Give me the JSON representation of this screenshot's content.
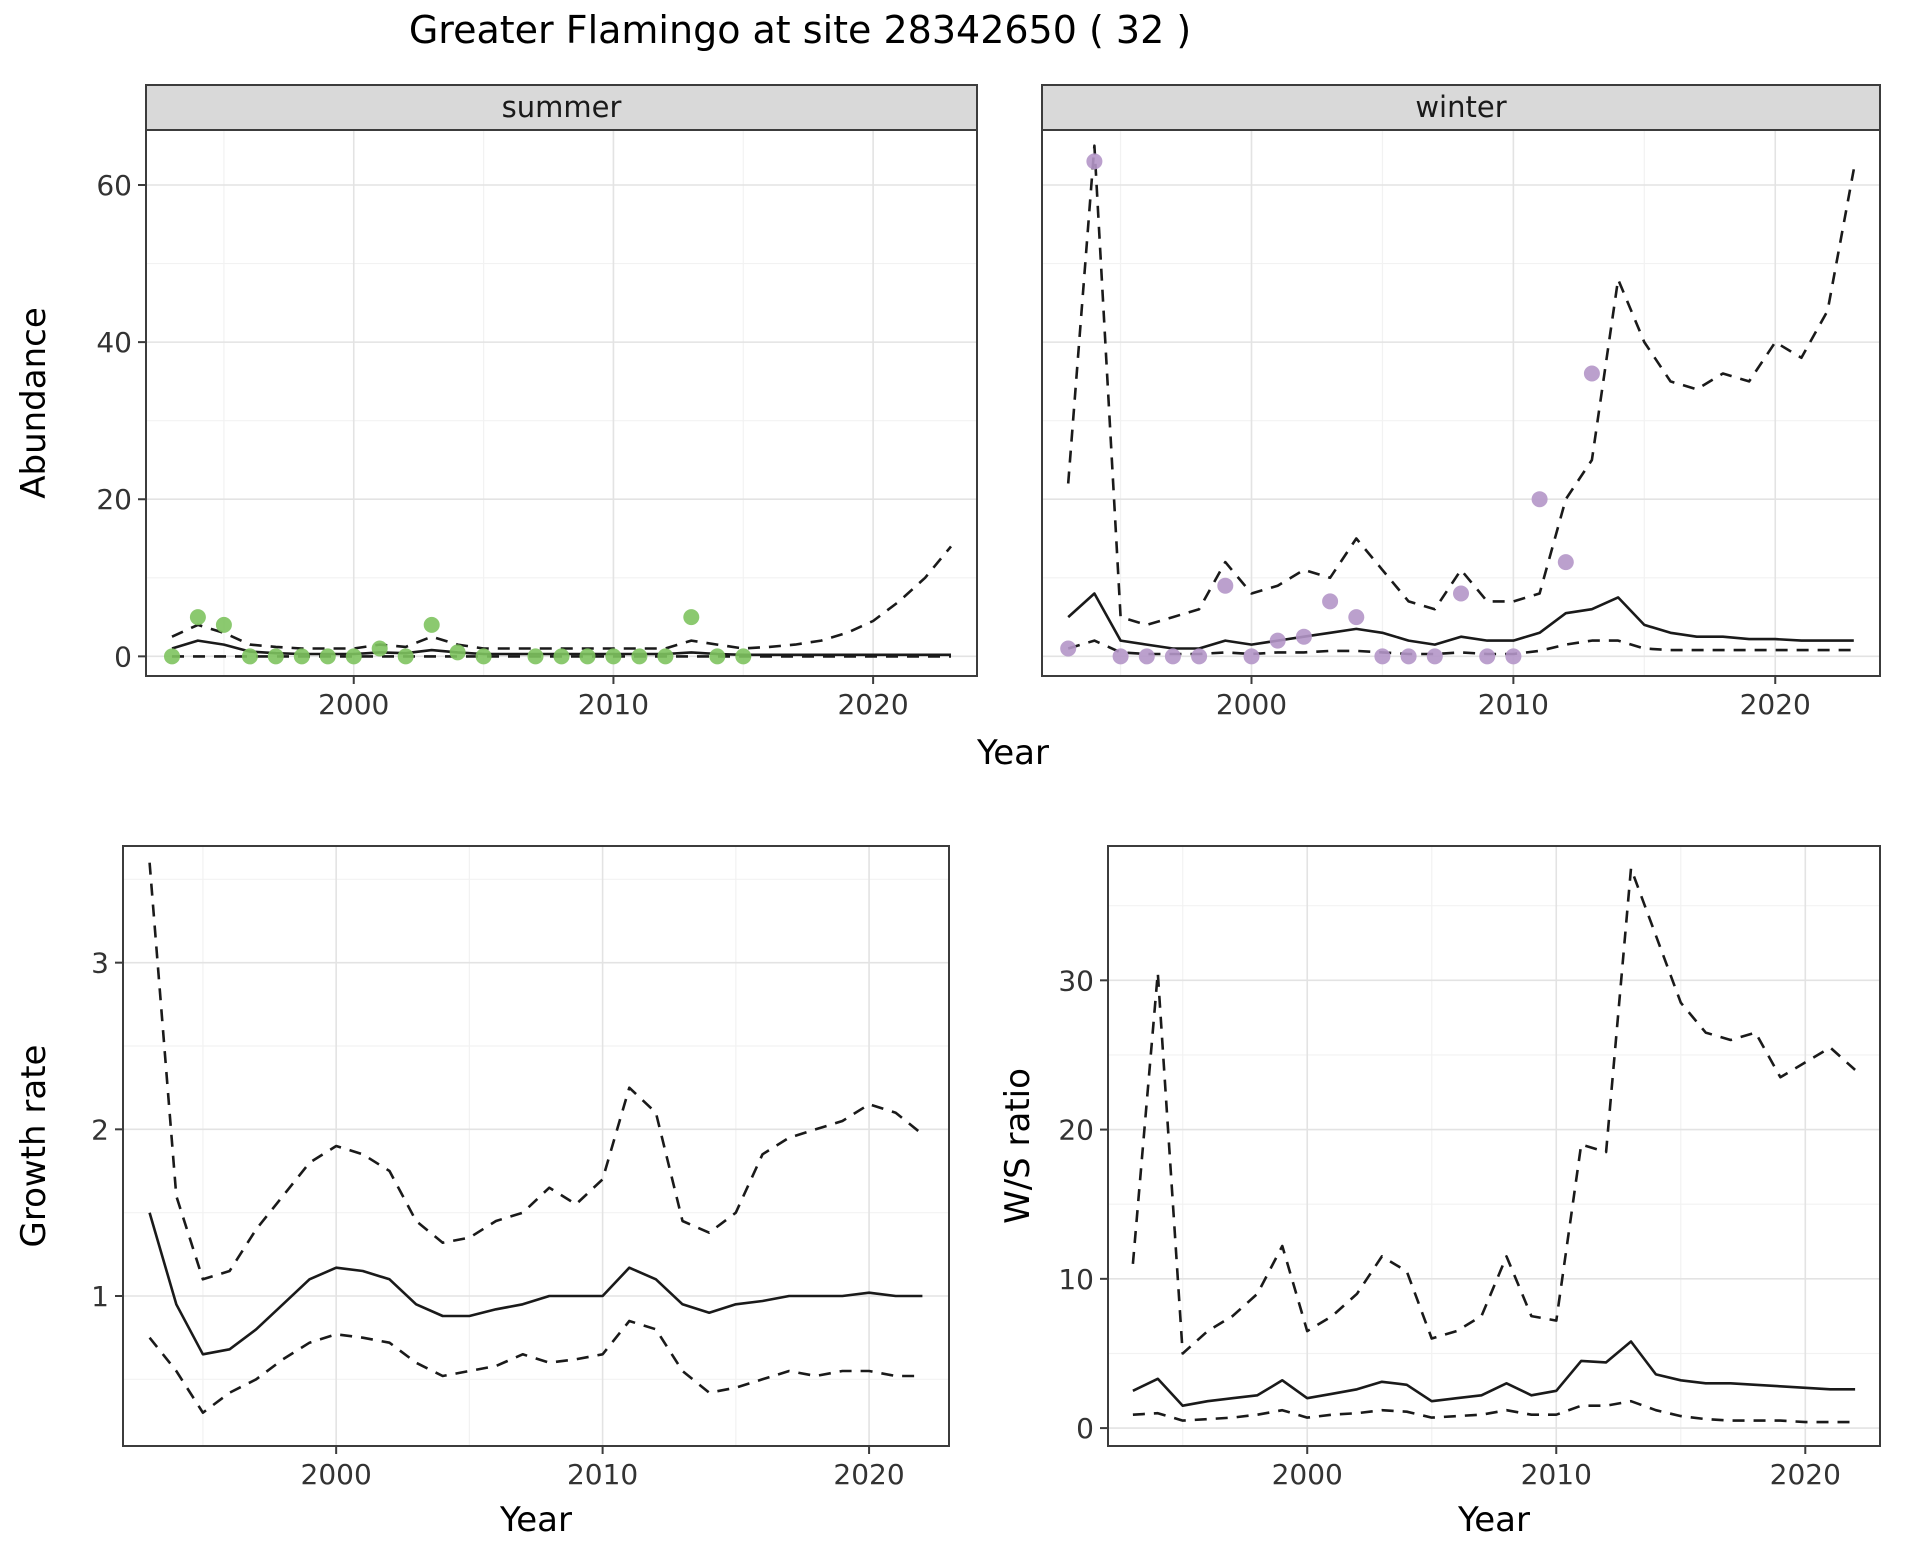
{
  "title": "Greater Flamingo at site 28342650 ( 32 )",
  "axis_titles": {
    "abundance": "Abundance",
    "year_top": "Year",
    "growth": "Growth rate",
    "year_bottom_left": "Year",
    "ws": "W/S ratio",
    "year_bottom_right": "Year"
  },
  "colors": {
    "summer_point": "#7ec35f",
    "winter_point": "#b496c8",
    "line": "#1a1a1a",
    "strip_bg": "#d9d9d9",
    "panel_border": "#3c3c3c",
    "grid_major": "#e3e3e3",
    "grid_minor": "#f2f2f2"
  },
  "chart_data": [
    {
      "id": "abundance-summer",
      "type": "line",
      "facet_label": "summer",
      "ylabel": "Abundance",
      "xlabel": "Year",
      "xlim": [
        1992,
        2024
      ],
      "ylim": [
        -2.5,
        67
      ],
      "xticks": [
        2000,
        2010,
        2020
      ],
      "yticks": [
        0,
        20,
        40,
        60
      ],
      "series": [
        {
          "name": "lower_ci",
          "style": "dashed",
          "x": [
            1993,
            1994,
            1995,
            1996,
            1997,
            1998,
            1999,
            2000,
            2001,
            2002,
            2003,
            2004,
            2005,
            2006,
            2007,
            2008,
            2009,
            2010,
            2011,
            2012,
            2013,
            2014,
            2015,
            2016,
            2017,
            2018,
            2019,
            2020,
            2021,
            2022,
            2023
          ],
          "y": [
            0,
            0,
            0,
            0,
            0,
            0,
            0,
            0,
            0,
            0,
            0,
            0,
            0,
            0,
            0,
            0,
            0,
            0,
            0,
            0,
            0,
            0,
            0,
            0,
            0,
            0,
            0,
            0,
            0,
            0,
            0
          ]
        },
        {
          "name": "upper_ci",
          "style": "dashed",
          "x": [
            1993,
            1994,
            1995,
            1996,
            1997,
            1998,
            1999,
            2000,
            2001,
            2002,
            2003,
            2004,
            2005,
            2006,
            2007,
            2008,
            2009,
            2010,
            2011,
            2012,
            2013,
            2014,
            2015,
            2016,
            2017,
            2018,
            2019,
            2020,
            2021,
            2022,
            2023
          ],
          "y": [
            2.5,
            4.0,
            3.0,
            1.5,
            1.2,
            1.0,
            1.0,
            1.0,
            1.5,
            1.2,
            2.5,
            1.5,
            1.0,
            1.0,
            1.0,
            1.0,
            1.0,
            1.0,
            1.0,
            1.0,
            2.0,
            1.5,
            1.0,
            1.2,
            1.5,
            2.0,
            3.0,
            4.5,
            7.0,
            10.0,
            14.0
          ]
        },
        {
          "name": "median",
          "style": "solid",
          "x": [
            1993,
            1994,
            1995,
            1996,
            1997,
            1998,
            1999,
            2000,
            2001,
            2002,
            2003,
            2004,
            2005,
            2006,
            2007,
            2008,
            2009,
            2010,
            2011,
            2012,
            2013,
            2014,
            2015,
            2016,
            2017,
            2018,
            2019,
            2020,
            2021,
            2022,
            2023
          ],
          "y": [
            1.0,
            2.0,
            1.5,
            0.6,
            0.4,
            0.3,
            0.3,
            0.3,
            0.5,
            0.4,
            0.8,
            0.5,
            0.3,
            0.3,
            0.3,
            0.3,
            0.3,
            0.3,
            0.3,
            0.3,
            0.5,
            0.3,
            0.2,
            0.2,
            0.2,
            0.2,
            0.2,
            0.2,
            0.2,
            0.2,
            0.2
          ]
        },
        {
          "name": "observed",
          "style": "points",
          "color": "#7ec35f",
          "x": [
            1993,
            1994,
            1995,
            1996,
            1997,
            1998,
            1999,
            2000,
            2001,
            2002,
            2003,
            2004,
            2005,
            2007,
            2008,
            2009,
            2010,
            2011,
            2012,
            2013,
            2014,
            2015
          ],
          "y": [
            0,
            5,
            4,
            0,
            0,
            0,
            0,
            0,
            1,
            0,
            4,
            0.5,
            0,
            0,
            0,
            0,
            0,
            0,
            0,
            5,
            0,
            0
          ]
        }
      ]
    },
    {
      "id": "abundance-winter",
      "type": "line",
      "facet_label": "winter",
      "ylabel": "Abundance",
      "xlabel": "Year",
      "xlim": [
        1992,
        2024
      ],
      "ylim": [
        -2.5,
        67
      ],
      "xticks": [
        2000,
        2010,
        2020
      ],
      "yticks": [
        0,
        20,
        40,
        60
      ],
      "series": [
        {
          "name": "lower_ci",
          "style": "dashed",
          "x": [
            1993,
            1994,
            1995,
            1996,
            1997,
            1998,
            1999,
            2000,
            2001,
            2002,
            2003,
            2004,
            2005,
            2006,
            2007,
            2008,
            2009,
            2010,
            2011,
            2012,
            2013,
            2014,
            2015,
            2016,
            2017,
            2018,
            2019,
            2020,
            2021,
            2022,
            2023
          ],
          "y": [
            1,
            2,
            0.5,
            0.3,
            0.3,
            0.3,
            0.5,
            0.3,
            0.5,
            0.5,
            0.7,
            0.7,
            0.5,
            0.3,
            0.3,
            0.5,
            0.3,
            0.3,
            0.7,
            1.5,
            2,
            2,
            1,
            0.8,
            0.8,
            0.8,
            0.8,
            0.8,
            0.8,
            0.8,
            0.8
          ]
        },
        {
          "name": "upper_ci",
          "style": "dashed",
          "x": [
            1993,
            1994,
            1995,
            1996,
            1997,
            1998,
            1999,
            2000,
            2001,
            2002,
            2003,
            2004,
            2005,
            2006,
            2007,
            2008,
            2009,
            2010,
            2011,
            2012,
            2013,
            2014,
            2015,
            2016,
            2017,
            2018,
            2019,
            2020,
            2021,
            2022,
            2023
          ],
          "y": [
            22,
            65,
            5,
            4,
            5,
            6,
            12,
            8,
            9,
            11,
            10,
            15,
            11,
            7,
            6,
            11,
            7,
            7,
            8,
            20,
            25,
            48,
            40,
            35,
            34,
            36,
            35,
            40,
            38,
            44,
            62
          ]
        },
        {
          "name": "median",
          "style": "solid",
          "x": [
            1993,
            1994,
            1995,
            1996,
            1997,
            1998,
            1999,
            2000,
            2001,
            2002,
            2003,
            2004,
            2005,
            2006,
            2007,
            2008,
            2009,
            2010,
            2011,
            2012,
            2013,
            2014,
            2015,
            2016,
            2017,
            2018,
            2019,
            2020,
            2021,
            2022,
            2023
          ],
          "y": [
            5,
            8,
            2,
            1.5,
            1,
            1,
            2,
            1.5,
            2,
            2.5,
            3,
            3.5,
            3,
            2,
            1.5,
            2.5,
            2,
            2,
            3,
            5.5,
            6,
            7.5,
            4,
            3,
            2.5,
            2.5,
            2.2,
            2.2,
            2,
            2,
            2
          ]
        },
        {
          "name": "observed",
          "style": "points",
          "color": "#b496c8",
          "x": [
            1993,
            1994,
            1995,
            1996,
            1997,
            1998,
            1999,
            2000,
            2001,
            2002,
            2003,
            2004,
            2005,
            2006,
            2007,
            2008,
            2009,
            2010,
            2011,
            2012,
            2013
          ],
          "y": [
            1,
            63,
            0,
            0,
            0,
            0,
            9,
            0,
            2,
            2.5,
            7,
            5,
            0,
            0,
            0,
            8,
            0,
            0,
            20,
            12,
            36
          ]
        }
      ]
    },
    {
      "id": "growth-rate",
      "type": "line",
      "facet_label": "",
      "ylabel": "Growth rate",
      "xlabel": "Year",
      "xlim": [
        1992,
        2023
      ],
      "ylim": [
        0.1,
        3.7
      ],
      "xticks": [
        2000,
        2010,
        2020
      ],
      "yticks": [
        1,
        2,
        3
      ],
      "series": [
        {
          "name": "lower_ci",
          "style": "dashed",
          "x": [
            1993,
            1994,
            1995,
            1996,
            1997,
            1998,
            1999,
            2000,
            2001,
            2002,
            2003,
            2004,
            2005,
            2006,
            2007,
            2008,
            2009,
            2010,
            2011,
            2012,
            2013,
            2014,
            2015,
            2016,
            2017,
            2018,
            2019,
            2020,
            2021,
            2022
          ],
          "y": [
            0.75,
            0.55,
            0.3,
            0.42,
            0.5,
            0.62,
            0.72,
            0.77,
            0.75,
            0.72,
            0.6,
            0.52,
            0.55,
            0.58,
            0.65,
            0.6,
            0.62,
            0.65,
            0.85,
            0.8,
            0.55,
            0.42,
            0.45,
            0.5,
            0.55,
            0.52,
            0.55,
            0.55,
            0.52,
            0.52
          ]
        },
        {
          "name": "upper_ci",
          "style": "dashed",
          "x": [
            1993,
            1994,
            1995,
            1996,
            1997,
            1998,
            1999,
            2000,
            2001,
            2002,
            2003,
            2004,
            2005,
            2006,
            2007,
            2008,
            2009,
            2010,
            2011,
            2012,
            2013,
            2014,
            2015,
            2016,
            2017,
            2018,
            2019,
            2020,
            2021,
            2022
          ],
          "y": [
            3.6,
            1.6,
            1.1,
            1.15,
            1.4,
            1.6,
            1.8,
            1.9,
            1.85,
            1.75,
            1.45,
            1.32,
            1.35,
            1.45,
            1.5,
            1.65,
            1.55,
            1.7,
            2.25,
            2.1,
            1.45,
            1.38,
            1.5,
            1.85,
            1.95,
            2.0,
            2.05,
            2.15,
            2.1,
            1.97
          ]
        },
        {
          "name": "median",
          "style": "solid",
          "x": [
            1993,
            1994,
            1995,
            1996,
            1997,
            1998,
            1999,
            2000,
            2001,
            2002,
            2003,
            2004,
            2005,
            2006,
            2007,
            2008,
            2009,
            2010,
            2011,
            2012,
            2013,
            2014,
            2015,
            2016,
            2017,
            2018,
            2019,
            2020,
            2021,
            2022
          ],
          "y": [
            1.5,
            0.95,
            0.65,
            0.68,
            0.8,
            0.95,
            1.1,
            1.17,
            1.15,
            1.1,
            0.95,
            0.88,
            0.88,
            0.92,
            0.95,
            1.0,
            1.0,
            1.0,
            1.17,
            1.1,
            0.95,
            0.9,
            0.95,
            0.97,
            1.0,
            1.0,
            1.0,
            1.02,
            1.0,
            1.0
          ]
        }
      ]
    },
    {
      "id": "ws-ratio",
      "type": "line",
      "facet_label": "",
      "ylabel": "W/S ratio",
      "xlabel": "Year",
      "xlim": [
        1992,
        2023
      ],
      "ylim": [
        -1.2,
        39
      ],
      "xticks": [
        2000,
        2010,
        2020
      ],
      "yticks": [
        0,
        10,
        20,
        30
      ],
      "series": [
        {
          "name": "lower_ci",
          "style": "dashed",
          "x": [
            1993,
            1994,
            1995,
            1996,
            1997,
            1998,
            1999,
            2000,
            2001,
            2002,
            2003,
            2004,
            2005,
            2006,
            2007,
            2008,
            2009,
            2010,
            2011,
            2012,
            2013,
            2014,
            2015,
            2016,
            2017,
            2018,
            2019,
            2020,
            2021,
            2022
          ],
          "y": [
            0.9,
            1.0,
            0.5,
            0.6,
            0.7,
            0.9,
            1.2,
            0.7,
            0.9,
            1.0,
            1.2,
            1.1,
            0.7,
            0.8,
            0.9,
            1.2,
            0.9,
            0.9,
            1.5,
            1.5,
            1.8,
            1.2,
            0.8,
            0.6,
            0.5,
            0.5,
            0.5,
            0.4,
            0.4,
            0.4
          ]
        },
        {
          "name": "upper_ci",
          "style": "dashed",
          "x": [
            1993,
            1994,
            1995,
            1996,
            1997,
            1998,
            1999,
            2000,
            2001,
            2002,
            2003,
            2004,
            2005,
            2006,
            2007,
            2008,
            2009,
            2010,
            2011,
            2012,
            2013,
            2014,
            2015,
            2016,
            2017,
            2018,
            2019,
            2020,
            2021,
            2022
          ],
          "y": [
            11,
            30.5,
            5,
            6.5,
            7.5,
            9,
            12.2,
            6.5,
            7.5,
            9,
            11.5,
            10.5,
            6,
            6.5,
            7.5,
            11.5,
            7.5,
            7.2,
            19,
            18.5,
            37.5,
            33,
            28.5,
            26.5,
            26,
            26.5,
            23.5,
            24.5,
            25.5,
            24
          ]
        },
        {
          "name": "median",
          "style": "solid",
          "x": [
            1993,
            1994,
            1995,
            1996,
            1997,
            1998,
            1999,
            2000,
            2001,
            2002,
            2003,
            2004,
            2005,
            2006,
            2007,
            2008,
            2009,
            2010,
            2011,
            2012,
            2013,
            2014,
            2015,
            2016,
            2017,
            2018,
            2019,
            2020,
            2021,
            2022
          ],
          "y": [
            2.5,
            3.3,
            1.5,
            1.8,
            2.0,
            2.2,
            3.2,
            2.0,
            2.3,
            2.6,
            3.1,
            2.9,
            1.8,
            2.0,
            2.2,
            3.0,
            2.2,
            2.5,
            4.5,
            4.4,
            5.8,
            3.6,
            3.2,
            3.0,
            3.0,
            2.9,
            2.8,
            2.7,
            2.6,
            2.6
          ]
        }
      ]
    }
  ]
}
